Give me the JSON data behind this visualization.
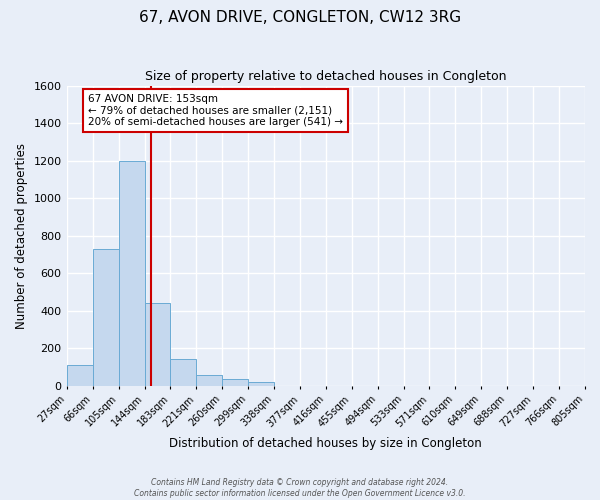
{
  "title": "67, AVON DRIVE, CONGLETON, CW12 3RG",
  "subtitle": "Size of property relative to detached houses in Congleton",
  "xlabel": "Distribution of detached houses by size in Congleton",
  "ylabel": "Number of detached properties",
  "bar_edges": [
    27,
    66,
    105,
    144,
    183,
    221,
    260,
    299,
    338,
    377,
    416,
    455,
    494,
    533,
    571,
    610,
    649,
    688,
    727,
    766,
    805
  ],
  "bar_heights": [
    110,
    730,
    1200,
    440,
    145,
    60,
    35,
    20,
    0,
    0,
    0,
    0,
    0,
    0,
    0,
    0,
    0,
    0,
    0,
    0
  ],
  "property_size": 153,
  "vline_color": "#cc0000",
  "bar_facecolor": "#c5d8ee",
  "bar_edgecolor": "#6aaad4",
  "annotation_line1": "67 AVON DRIVE: 153sqm",
  "annotation_line2": "← 79% of detached houses are smaller (2,151)",
  "annotation_line3": "20% of semi-detached houses are larger (541) →",
  "annotation_box_edgecolor": "#cc0000",
  "annotation_box_facecolor": "#ffffff",
  "ylim": [
    0,
    1600
  ],
  "yticks": [
    0,
    200,
    400,
    600,
    800,
    1000,
    1200,
    1400,
    1600
  ],
  "tick_labels": [
    "27sqm",
    "66sqm",
    "105sqm",
    "144sqm",
    "183sqm",
    "221sqm",
    "260sqm",
    "299sqm",
    "338sqm",
    "377sqm",
    "416sqm",
    "455sqm",
    "494sqm",
    "533sqm",
    "571sqm",
    "610sqm",
    "649sqm",
    "688sqm",
    "727sqm",
    "766sqm",
    "805sqm"
  ],
  "footer_line1": "Contains HM Land Registry data © Crown copyright and database right 2024.",
  "footer_line2": "Contains public sector information licensed under the Open Government Licence v3.0.",
  "background_color": "#e8eef8",
  "grid_color": "#ffffff",
  "title_fontsize": 11,
  "subtitle_fontsize": 9
}
